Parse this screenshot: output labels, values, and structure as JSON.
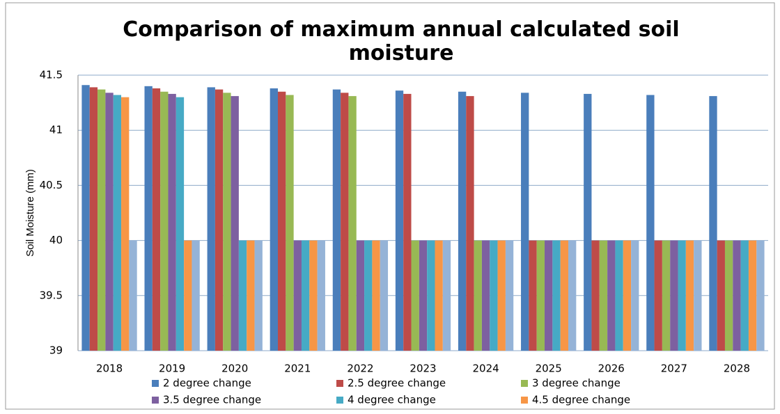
{
  "chart_data": {
    "type": "bar",
    "title": "Comparison of maximum annual calculated soil moisture",
    "y_label": "Soil Moisture (mm)",
    "categories": [
      "2018",
      "2019",
      "2020",
      "2021",
      "2022",
      "2023",
      "2024",
      "2025",
      "2026",
      "2027",
      "2028"
    ],
    "series": [
      {
        "name": "2 degree change",
        "color": "#4a7ebb",
        "values": [
          41.41,
          41.4,
          41.39,
          41.38,
          41.37,
          41.36,
          41.35,
          41.34,
          41.33,
          41.32,
          41.31
        ]
      },
      {
        "name": "2.5 degree change",
        "color": "#be4b48",
        "values": [
          41.39,
          41.38,
          41.37,
          41.35,
          41.34,
          41.33,
          41.31,
          40,
          40,
          40,
          40
        ]
      },
      {
        "name": "3 degree change",
        "color": "#98b954",
        "values": [
          41.37,
          41.35,
          41.34,
          41.32,
          41.31,
          40,
          40,
          40,
          40,
          40,
          40
        ]
      },
      {
        "name": "3.5 degree change",
        "color": "#7d60a0",
        "values": [
          41.34,
          41.33,
          41.31,
          40,
          40,
          40,
          40,
          40,
          40,
          40,
          40
        ]
      },
      {
        "name": "4 degree change",
        "color": "#46aac5",
        "values": [
          41.32,
          41.3,
          40,
          40,
          40,
          40,
          40,
          40,
          40,
          40,
          40
        ]
      },
      {
        "name": "4.5 degree change",
        "color": "#f79646",
        "values": [
          41.3,
          40,
          40,
          40,
          40,
          40,
          40,
          40,
          40,
          40,
          40
        ]
      },
      {
        "color": "#95b3d7",
        "values": [
          40,
          40,
          40,
          40,
          40,
          40,
          40,
          40,
          40,
          40,
          40
        ]
      }
    ],
    "ylim": [
      39,
      41.5
    ],
    "yticks": [
      39,
      39.5,
      40,
      40.5,
      41,
      41.5
    ],
    "grid": true,
    "legend": "bottom"
  }
}
